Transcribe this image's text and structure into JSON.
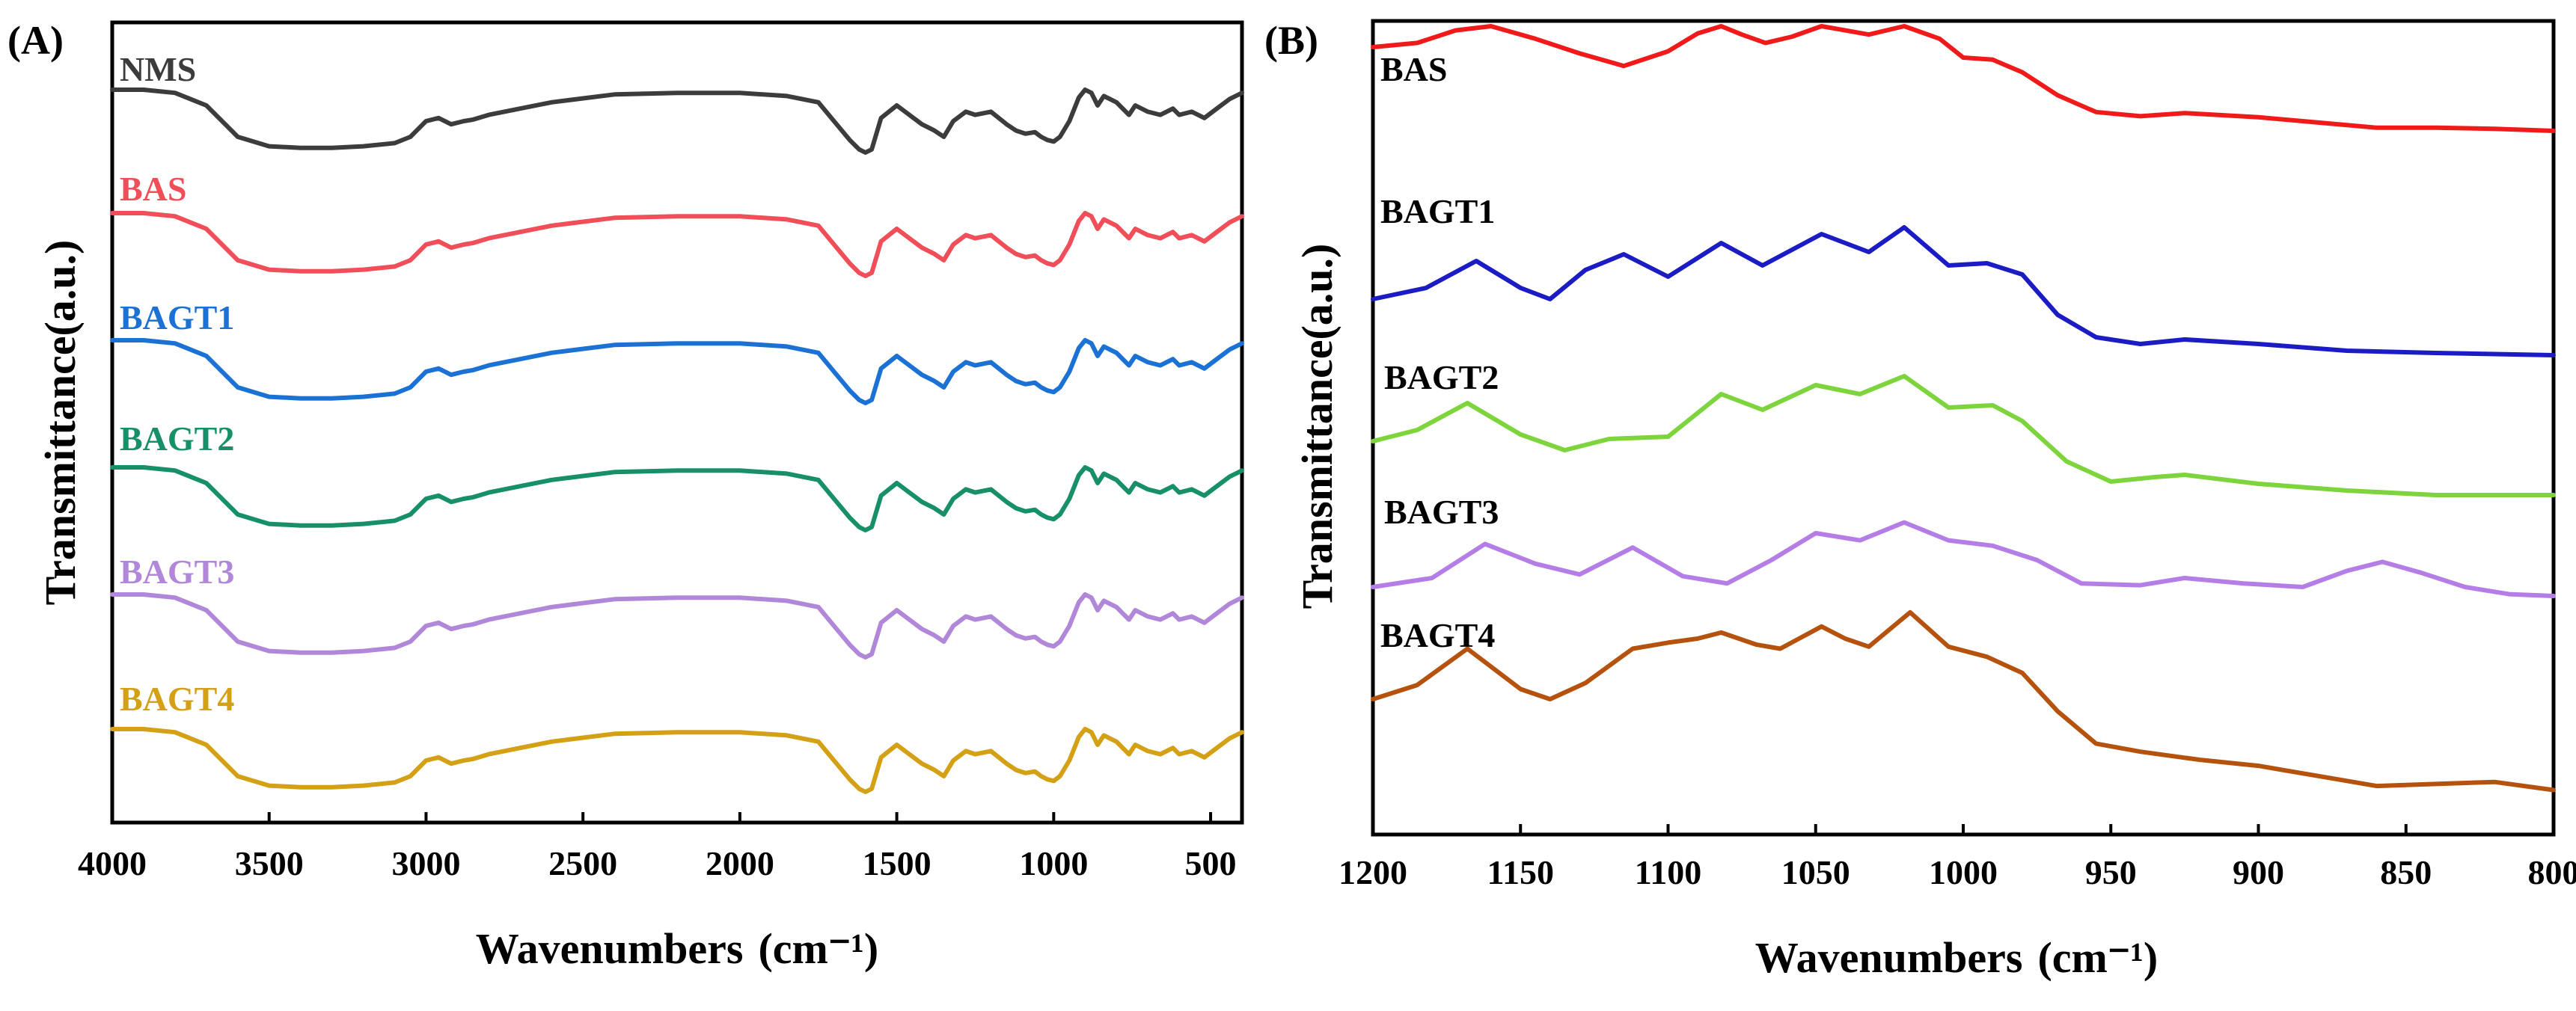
{
  "chart_data": [
    {
      "panel": "(A)",
      "type": "line",
      "title": "",
      "xlabel": "Wavenumbers",
      "xlabel_unit": "(cm⁻¹)",
      "ylabel": "Transmittance(a.u.)",
      "xlim": [
        4000,
        400
      ],
      "x_ticks": [
        4000,
        3500,
        3000,
        2500,
        2000,
        1500,
        1000,
        500
      ],
      "y_ticks": [],
      "baseline_profile": {
        "x": [
          4000,
          3900,
          3800,
          3700,
          3600,
          3500,
          3400,
          3300,
          3200,
          3100,
          3050,
          3000,
          2960,
          2920,
          2880,
          2850,
          2800,
          2600,
          2400,
          2200,
          2000,
          1850,
          1750,
          1700,
          1650,
          1620,
          1600,
          1580,
          1550,
          1500,
          1460,
          1420,
          1380,
          1350,
          1320,
          1280,
          1250,
          1200,
          1150,
          1120,
          1090,
          1060,
          1040,
          1020,
          1000,
          980,
          950,
          920,
          900,
          880,
          860,
          840,
          800,
          780,
          760,
          740,
          700,
          660,
          620,
          600,
          560,
          520,
          480,
          440,
          400
        ],
        "y": [
          0.0,
          0.0,
          0.02,
          0.1,
          0.3,
          0.36,
          0.37,
          0.37,
          0.36,
          0.34,
          0.3,
          0.2,
          0.18,
          0.22,
          0.2,
          0.19,
          0.16,
          0.08,
          0.03,
          0.02,
          0.02,
          0.04,
          0.08,
          0.2,
          0.32,
          0.38,
          0.4,
          0.38,
          0.18,
          0.1,
          0.16,
          0.22,
          0.26,
          0.3,
          0.2,
          0.14,
          0.16,
          0.14,
          0.22,
          0.26,
          0.28,
          0.27,
          0.3,
          0.32,
          0.33,
          0.3,
          0.2,
          0.05,
          0.0,
          0.02,
          0.1,
          0.04,
          0.08,
          0.12,
          0.16,
          0.1,
          0.14,
          0.16,
          0.12,
          0.16,
          0.14,
          0.18,
          0.12,
          0.06,
          0.02
        ]
      },
      "series": [
        {
          "name": "NMS",
          "color": "#3c3c3c"
        },
        {
          "name": "BAS",
          "color": "#f04e58"
        },
        {
          "name": "BAGT1",
          "color": "#1b72d4"
        },
        {
          "name": "BAGT2",
          "color": "#17906a"
        },
        {
          "name": "BAGT3",
          "color": "#b187d9"
        },
        {
          "name": "BAGT4",
          "color": "#d4a015"
        }
      ]
    },
    {
      "panel": "(B)",
      "type": "line",
      "title": "",
      "xlabel": "Wavenumbers",
      "xlabel_unit": "(cm⁻¹)",
      "ylabel": "Transmittance(a.u.)",
      "xlim": [
        1200,
        800
      ],
      "x_ticks": [
        1200,
        1150,
        1100,
        1050,
        1000,
        950,
        900,
        850,
        800
      ],
      "y_ticks": [],
      "series": [
        {
          "name": "BAS",
          "color": "#f01a1a",
          "x": [
            1200,
            1185,
            1172,
            1160,
            1145,
            1130,
            1115,
            1100,
            1090,
            1082,
            1075,
            1067,
            1058,
            1048,
            1040,
            1032,
            1020,
            1008,
            1000,
            990,
            980,
            968,
            955,
            940,
            925,
            900,
            880,
            860,
            840,
            820,
            800
          ],
          "y": [
            0.8,
            0.84,
            0.96,
            1.0,
            0.88,
            0.74,
            0.62,
            0.76,
            0.93,
            1.0,
            0.92,
            0.84,
            0.9,
            1.0,
            0.96,
            0.92,
            1.0,
            0.88,
            0.7,
            0.68,
            0.56,
            0.34,
            0.18,
            0.14,
            0.17,
            0.13,
            0.08,
            0.03,
            0.03,
            0.02,
            0.0
          ]
        },
        {
          "name": "BAGT1",
          "color": "#1c1cc4",
          "x": [
            1200,
            1182,
            1165,
            1150,
            1140,
            1128,
            1115,
            1100,
            1082,
            1068,
            1048,
            1032,
            1020,
            1005,
            992,
            980,
            968,
            955,
            940,
            925,
            900,
            870,
            840,
            800
          ],
          "y": [
            0.0,
            0.1,
            0.34,
            0.1,
            0.0,
            0.26,
            0.4,
            0.2,
            0.5,
            0.3,
            0.58,
            0.42,
            0.64,
            0.3,
            0.32,
            0.22,
            -0.14,
            -0.34,
            -0.4,
            -0.36,
            -0.4,
            -0.46,
            -0.48,
            -0.5
          ]
        },
        {
          "name": "BAGT2",
          "color": "#7dd43c",
          "x": [
            1200,
            1185,
            1168,
            1150,
            1135,
            1120,
            1100,
            1082,
            1068,
            1050,
            1035,
            1020,
            1005,
            990,
            980,
            965,
            950,
            935,
            925,
            900,
            870,
            840,
            800
          ],
          "y": [
            0.0,
            0.1,
            0.34,
            0.06,
            -0.08,
            0.02,
            0.04,
            0.42,
            0.28,
            0.5,
            0.42,
            0.58,
            0.3,
            0.32,
            0.18,
            -0.18,
            -0.36,
            -0.32,
            -0.3,
            -0.38,
            -0.44,
            -0.48,
            -0.48
          ]
        },
        {
          "name": "BAGT3",
          "color": "#b47ee6",
          "x": [
            1200,
            1180,
            1162,
            1145,
            1130,
            1112,
            1095,
            1080,
            1065,
            1050,
            1035,
            1020,
            1005,
            990,
            975,
            960,
            940,
            925,
            905,
            885,
            870,
            858,
            845,
            830,
            815,
            800
          ],
          "y": [
            0.0,
            0.1,
            0.48,
            0.26,
            0.14,
            0.44,
            0.12,
            0.04,
            0.3,
            0.6,
            0.52,
            0.72,
            0.52,
            0.46,
            0.3,
            0.04,
            0.02,
            0.1,
            0.04,
            0.0,
            0.18,
            0.28,
            0.16,
            0.0,
            -0.08,
            -0.1
          ]
        },
        {
          "name": "BAGT4",
          "color": "#b5530e",
          "x": [
            1200,
            1185,
            1168,
            1150,
            1140,
            1128,
            1112,
            1100,
            1090,
            1082,
            1070,
            1062,
            1048,
            1040,
            1032,
            1018,
            1005,
            992,
            980,
            968,
            955,
            940,
            920,
            900,
            880,
            860,
            840,
            820,
            800
          ],
          "y": [
            0.0,
            0.14,
            0.5,
            0.1,
            0.0,
            0.16,
            0.5,
            0.56,
            0.6,
            0.66,
            0.54,
            0.5,
            0.72,
            0.6,
            0.52,
            0.86,
            0.52,
            0.42,
            0.26,
            -0.12,
            -0.44,
            -0.52,
            -0.6,
            -0.66,
            -0.76,
            -0.86,
            -0.84,
            -0.82,
            -0.9
          ]
        }
      ]
    }
  ]
}
